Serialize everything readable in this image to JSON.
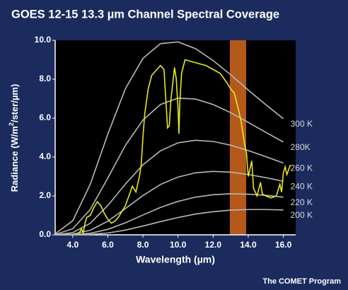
{
  "chart_data": {
    "type": "line",
    "title": "GOES 12-15 13.3 µm Channel Spectral Coverage",
    "x_label": "Wavelength (µm)",
    "y_label": [
      "Radiance (W/m",
      "2",
      "/ster/µm)"
    ],
    "footer": "The COMET Program",
    "xlim": [
      3,
      16.7
    ],
    "ylim": [
      0,
      10
    ],
    "xticks": [
      {
        "value": 4,
        "label": "4.0"
      },
      {
        "value": 6,
        "label": "6.0"
      },
      {
        "value": 8,
        "label": "8.0"
      },
      {
        "value": 10,
        "label": "10.0"
      },
      {
        "value": 12,
        "label": "12.0"
      },
      {
        "value": 14,
        "label": "14.0"
      },
      {
        "value": 16,
        "label": "16.0"
      }
    ],
    "yticks": [
      {
        "value": 0,
        "label": "0.0"
      },
      {
        "value": 2,
        "label": "2.0"
      },
      {
        "value": 4,
        "label": "4.0"
      },
      {
        "value": 6,
        "label": "6.0"
      },
      {
        "value": 8,
        "label": "8.0"
      },
      {
        "value": 10,
        "label": "10.0"
      }
    ],
    "x": [
      3,
      4,
      5,
      6,
      7,
      8,
      9,
      10,
      11,
      12,
      13,
      14,
      15,
      16
    ],
    "series": [
      {
        "name": "300 K",
        "color": "#b8b8b8",
        "values": [
          0.056,
          0.72,
          2.6,
          5.18,
          7.51,
          9.07,
          9.83,
          9.92,
          9.57,
          8.96,
          8.23,
          7.44,
          6.69,
          5.97
        ]
      },
      {
        "name": "280K",
        "color": "#b8b8b8",
        "values": [
          0.018,
          0.31,
          1.31,
          2.92,
          4.6,
          5.9,
          6.7,
          7.03,
          6.98,
          6.7,
          6.28,
          5.78,
          5.27,
          4.77
        ]
      },
      {
        "name": "260 K",
        "color": "#b8b8b8",
        "values": [
          0.005,
          0.114,
          0.594,
          1.51,
          2.61,
          3.6,
          4.32,
          4.73,
          4.86,
          4.8,
          4.61,
          4.33,
          4.02,
          3.69
        ]
      },
      {
        "name": "240 K",
        "color": "#b8b8b8",
        "values": [
          0.001,
          0.036,
          0.237,
          0.7,
          1.35,
          2.02,
          2.59,
          2.97,
          3.19,
          3.26,
          3.22,
          3.1,
          2.94,
          2.75
        ]
      },
      {
        "name": "220 K",
        "color": "#b8b8b8",
        "values": [
          0.0002,
          0.009,
          0.079,
          0.28,
          0.62,
          1.02,
          1.41,
          1.72,
          1.94,
          2.06,
          2.11,
          2.09,
          2.03,
          1.94
        ]
      },
      {
        "name": "200 K",
        "color": "#b8b8b8",
        "values": [
          0,
          0.0018,
          0.0215,
          0.095,
          0.244,
          0.452,
          0.68,
          0.89,
          1.07,
          1.19,
          1.27,
          1.3,
          1.3,
          1.28
        ]
      }
    ],
    "spectrum": {
      "color": "#e8e820",
      "x": [
        4.3,
        4.5,
        4.6,
        4.7,
        4.8,
        5.0,
        5.2,
        5.4,
        5.6,
        5.8,
        6.0,
        6.2,
        6.4,
        6.6,
        6.8,
        7.0,
        7.2,
        7.4,
        7.6,
        7.8,
        7.9,
        8.0,
        8.1,
        8.3,
        8.5,
        8.8,
        9.0,
        9.2,
        9.3,
        9.4,
        9.5,
        9.6,
        9.8,
        9.9,
        10.0,
        10.05,
        10.1,
        10.2,
        10.4,
        10.8,
        11.2,
        11.6,
        12.0,
        12.4,
        12.8,
        13.0,
        13.2,
        13.4,
        13.6,
        13.8,
        13.9,
        14.0,
        14.2,
        14.3,
        14.5,
        14.7,
        14.8,
        15.0,
        15.3,
        15.6,
        15.8,
        15.9,
        16.0,
        16.1,
        16.2,
        16.4
      ],
      "values": [
        0.0,
        0.3,
        0.1,
        0.6,
        0.9,
        1.0,
        1.4,
        1.7,
        1.5,
        1.1,
        0.8,
        0.6,
        0.7,
        0.9,
        1.2,
        1.5,
        2.0,
        2.5,
        2.2,
        3.0,
        3.6,
        5.0,
        6.2,
        7.5,
        8.2,
        8.5,
        8.7,
        8.5,
        7.0,
        5.5,
        5.6,
        7.0,
        8.6,
        8.0,
        6.5,
        5.2,
        6.8,
        8.3,
        9.0,
        8.9,
        8.8,
        8.7,
        8.5,
        8.3,
        7.8,
        7.5,
        7.3,
        6.6,
        5.8,
        4.6,
        4.2,
        3.0,
        3.8,
        2.4,
        2.0,
        2.7,
        2.1,
        2.0,
        1.9,
        2.0,
        2.6,
        2.2,
        3.2,
        3.5,
        3.1,
        3.6
      ]
    },
    "band": {
      "range": [
        12.95,
        13.88
      ],
      "color": "#d2691e"
    }
  }
}
